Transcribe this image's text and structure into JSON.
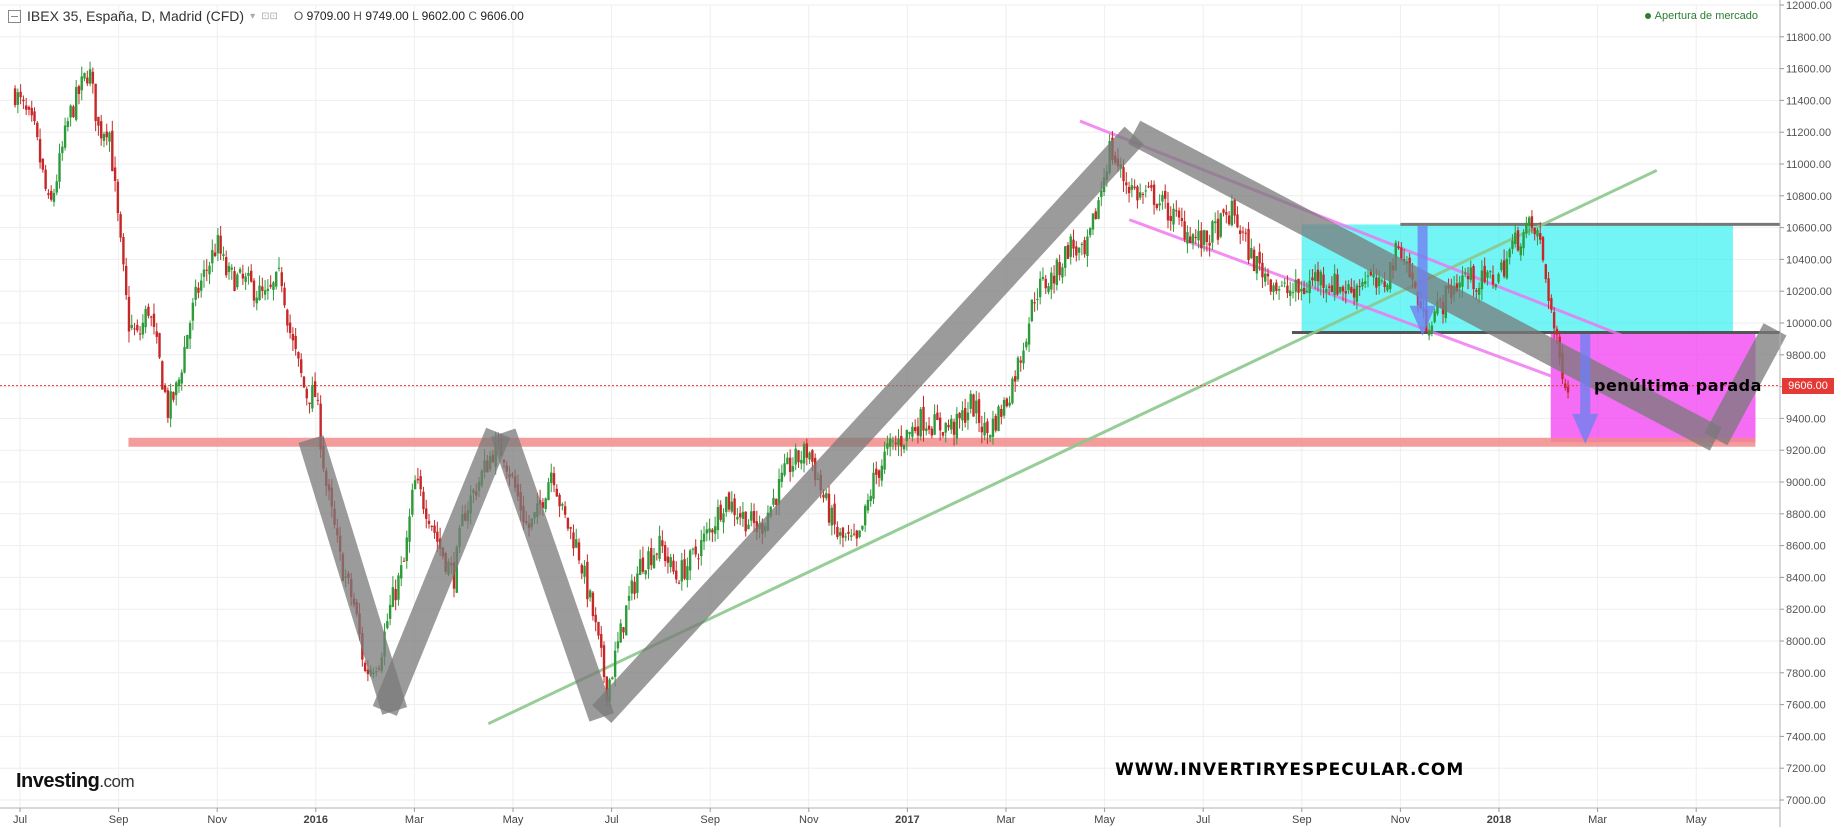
{
  "header": {
    "title": "IBEX 35, España, D, Madrid (CFD)",
    "o_label": "O",
    "o_value": "9709.00",
    "h_label": "H",
    "h_value": "9749.00",
    "l_label": "L",
    "l_value": "9602.00",
    "c_label": "C",
    "c_value": "9606.00"
  },
  "market_status": "Apertura de mercado",
  "logo": {
    "main": "Investing",
    "suffix": ".com"
  },
  "website": "WWW.INVERTIRYESPECULAR.COM",
  "annotation": "penúltima parada",
  "current_price": "9606.00",
  "colors": {
    "up": "#2e9b3a",
    "down": "#c62828",
    "support": "#f28b8b",
    "channel": "#ef72ef",
    "trend": "#8cc88c",
    "zigzag": "#7a7a7a",
    "cyan_box": "#28f0f0",
    "magenta_box": "#f03cf0",
    "arrow": "#6f7ff0"
  },
  "chart_data": {
    "type": "candlestick",
    "title": "IBEX 35, España, D, Madrid (CFD)",
    "xlabel": "",
    "ylabel": "",
    "ylim": [
      7000,
      12000
    ],
    "y_ticks": [
      7000,
      7200,
      7400,
      7600,
      7800,
      8000,
      8200,
      8400,
      8600,
      8800,
      9000,
      9200,
      9400,
      9600,
      9800,
      10000,
      10200,
      10400,
      10600,
      10800,
      11000,
      11200,
      11400,
      11600,
      11800,
      12000
    ],
    "y_tick_labels": [
      "7000.00",
      "7200.00",
      "7400.00",
      "7600.00",
      "7800.00",
      "8000.00",
      "8200.00",
      "8400.00",
      "8600.00",
      "8800.00",
      "9000.00",
      "9200.00",
      "9400.00",
      "9600.00",
      "9800.00",
      "10000.00",
      "10200.00",
      "10400.00",
      "10600.00",
      "10800.00",
      "11000.00",
      "11200.00",
      "11400.00",
      "11600.00",
      "11800.00",
      "12000.00"
    ],
    "x_ticks": [
      {
        "label": "Jul",
        "month": 0,
        "bold": false
      },
      {
        "label": "Sep",
        "month": 2,
        "bold": false
      },
      {
        "label": "Nov",
        "month": 4,
        "bold": false
      },
      {
        "label": "2016",
        "month": 6,
        "bold": true
      },
      {
        "label": "Mar",
        "month": 8,
        "bold": false
      },
      {
        "label": "May",
        "month": 10,
        "bold": false
      },
      {
        "label": "Jul",
        "month": 12,
        "bold": false
      },
      {
        "label": "Sep",
        "month": 14,
        "bold": false
      },
      {
        "label": "Nov",
        "month": 16,
        "bold": false
      },
      {
        "label": "2017",
        "month": 18,
        "bold": true
      },
      {
        "label": "Mar",
        "month": 20,
        "bold": false
      },
      {
        "label": "May",
        "month": 22,
        "bold": false
      },
      {
        "label": "Jul",
        "month": 24,
        "bold": false
      },
      {
        "label": "Sep",
        "month": 26,
        "bold": false
      },
      {
        "label": "Nov",
        "month": 28,
        "bold": false
      },
      {
        "label": "2018",
        "month": 30,
        "bold": true
      },
      {
        "label": "Mar",
        "month": 32,
        "bold": false
      },
      {
        "label": "May",
        "month": 34,
        "bold": false
      }
    ],
    "price_path": [
      [
        -0.1,
        11450
      ],
      [
        0.3,
        11200
      ],
      [
        0.6,
        10700
      ],
      [
        1.0,
        11300
      ],
      [
        1.4,
        11600
      ],
      [
        1.6,
        11200
      ],
      [
        1.8,
        11250
      ],
      [
        2.0,
        10600
      ],
      [
        2.2,
        10000
      ],
      [
        2.4,
        9900
      ],
      [
        2.6,
        10100
      ],
      [
        2.8,
        9800
      ],
      [
        3.0,
        9450
      ],
      [
        3.2,
        9600
      ],
      [
        3.4,
        9950
      ],
      [
        3.6,
        10200
      ],
      [
        4.0,
        10500
      ],
      [
        4.2,
        10300
      ],
      [
        4.6,
        10250
      ],
      [
        5.0,
        10150
      ],
      [
        5.3,
        10300
      ],
      [
        5.5,
        9900
      ],
      [
        5.8,
        9550
      ],
      [
        6.0,
        9550
      ],
      [
        6.2,
        9000
      ],
      [
        6.5,
        8500
      ],
      [
        6.8,
        8200
      ],
      [
        7.0,
        7800
      ],
      [
        7.3,
        7900
      ],
      [
        7.5,
        8200
      ],
      [
        7.8,
        8500
      ],
      [
        8.0,
        9000
      ],
      [
        8.3,
        8800
      ],
      [
        8.5,
        8600
      ],
      [
        8.8,
        8400
      ],
      [
        9.0,
        8800
      ],
      [
        9.3,
        9000
      ],
      [
        9.6,
        9200
      ],
      [
        9.8,
        9200
      ],
      [
        10.0,
        9000
      ],
      [
        10.3,
        8700
      ],
      [
        10.5,
        8800
      ],
      [
        10.8,
        9100
      ],
      [
        11.0,
        8800
      ],
      [
        11.3,
        8600
      ],
      [
        11.6,
        8200
      ],
      [
        11.9,
        7700
      ],
      [
        12.0,
        7800
      ],
      [
        12.3,
        8200
      ],
      [
        12.6,
        8500
      ],
      [
        13.0,
        8600
      ],
      [
        13.3,
        8400
      ],
      [
        13.6,
        8500
      ],
      [
        14.0,
        8700
      ],
      [
        14.3,
        8900
      ],
      [
        14.6,
        8800
      ],
      [
        15.0,
        8700
      ],
      [
        15.3,
        8900
      ],
      [
        15.6,
        9100
      ],
      [
        16.0,
        9200
      ],
      [
        16.3,
        8900
      ],
      [
        16.6,
        8650
      ],
      [
        17.0,
        8600
      ],
      [
        17.3,
        9000
      ],
      [
        17.6,
        9200
      ],
      [
        18.0,
        9300
      ],
      [
        18.3,
        9400
      ],
      [
        18.6,
        9350
      ],
      [
        19.0,
        9350
      ],
      [
        19.3,
        9500
      ],
      [
        19.6,
        9300
      ],
      [
        20.0,
        9500
      ],
      [
        20.3,
        9800
      ],
      [
        20.6,
        10200
      ],
      [
        21.0,
        10300
      ],
      [
        21.3,
        10500
      ],
      [
        21.6,
        10400
      ],
      [
        21.9,
        10800
      ],
      [
        22.1,
        11100
      ],
      [
        22.4,
        10900
      ],
      [
        22.7,
        10800
      ],
      [
        23.0,
        10800
      ],
      [
        23.3,
        10700
      ],
      [
        23.6,
        10600
      ],
      [
        24.0,
        10500
      ],
      [
        24.3,
        10600
      ],
      [
        24.6,
        10700
      ],
      [
        25.0,
        10400
      ],
      [
        25.3,
        10300
      ],
      [
        25.6,
        10200
      ],
      [
        26.0,
        10200
      ],
      [
        26.3,
        10300
      ],
      [
        26.6,
        10250
      ],
      [
        27.0,
        10200
      ],
      [
        27.3,
        10300
      ],
      [
        27.6,
        10200
      ],
      [
        28.0,
        10500
      ],
      [
        28.2,
        10300
      ],
      [
        28.5,
        10000
      ],
      [
        28.8,
        10100
      ],
      [
        29.0,
        10200
      ],
      [
        29.3,
        10300
      ],
      [
        29.6,
        10250
      ],
      [
        30.0,
        10300
      ],
      [
        30.3,
        10500
      ],
      [
        30.6,
        10600
      ],
      [
        30.8,
        10550
      ],
      [
        31.0,
        10200
      ],
      [
        31.2,
        9800
      ],
      [
        31.4,
        9606
      ]
    ],
    "support_level": 9250,
    "current_price": 9606
  }
}
